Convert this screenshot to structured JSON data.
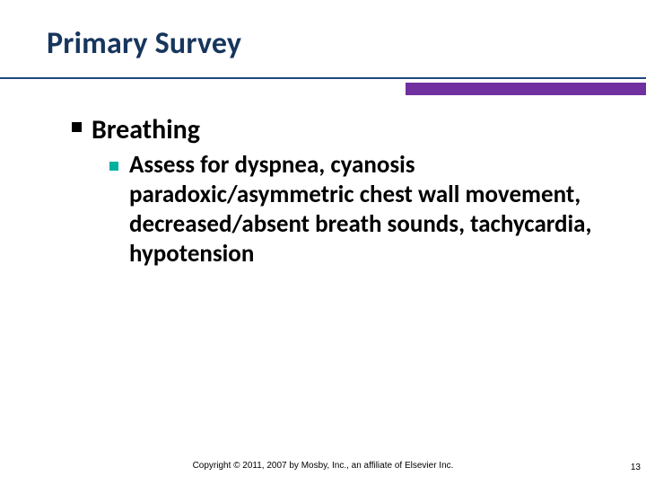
{
  "colors": {
    "title": "#17365d",
    "rule_thin": "#1f497d",
    "rule_thick": "#7030a0",
    "sub_bullet": "#00b0a0"
  },
  "title": "Primary Survey",
  "l1_label": "Breathing",
  "l2_text": "Assess for dyspnea, cyanosis paradoxic/asymmetric chest wall movement, decreased/absent breath sounds, tachycardia, hypotension",
  "copyright": "Copyright © 2011, 2007 by Mosby, Inc., an affiliate of Elsevier Inc.",
  "page_number": "13"
}
